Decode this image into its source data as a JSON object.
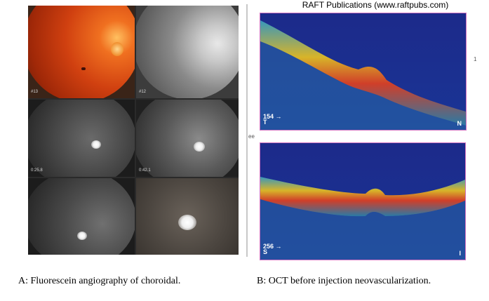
{
  "header": {
    "text": "RAFT Publications  (www.raftpubs.com)"
  },
  "left_panel": {
    "tiles": [
      {
        "label": "#13"
      },
      {
        "label": "#12"
      },
      {
        "label": "0:25.8"
      },
      {
        "label": "0:42.1"
      }
    ]
  },
  "oct_top": {
    "marker": "154",
    "marker_sub": "T",
    "corner": "N"
  },
  "oct_bottom": {
    "marker": "256",
    "marker_sub": "S",
    "corner": "I"
  },
  "stray": {
    "ee": "ee",
    "one": "1"
  },
  "captions": {
    "a": "A: Fluorescein angiography of choroidal.",
    "b": "B: OCT before injection neovascularization."
  },
  "colors": {
    "oct_background": "#1c2a8a",
    "retina_band": "#e8c020",
    "rpe_band": "#e04020",
    "oct_border": "#d070c0"
  }
}
